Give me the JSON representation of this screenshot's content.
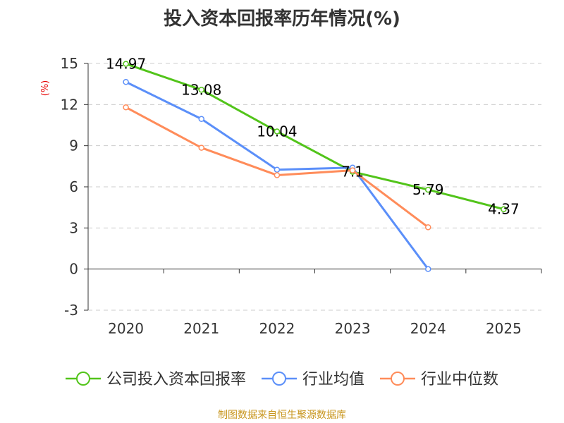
{
  "chart_data": {
    "type": "line",
    "title": "投入资本回报率历年情况(%)",
    "ylabel": "(%)",
    "xlabel": "",
    "categories": [
      "2020",
      "2021",
      "2022",
      "2023",
      "2024",
      "2025"
    ],
    "ylim": [
      -3,
      15
    ],
    "yticks": [
      -3,
      0,
      3,
      6,
      9,
      12,
      15
    ],
    "grid": true,
    "legend_position": "bottom",
    "series": [
      {
        "name": "公司投入资本回报率",
        "color": "#52c41a",
        "values": [
          14.97,
          13.08,
          10.04,
          7.1,
          5.79,
          4.37
        ],
        "labels": [
          "14.97",
          "13.08",
          "10.04",
          "7.1",
          "5.79",
          "4.37"
        ]
      },
      {
        "name": "行业均值",
        "color": "#5b8ff9",
        "values": [
          13.65,
          10.95,
          7.25,
          7.4,
          0.0,
          null
        ]
      },
      {
        "name": "行业中位数",
        "color": "#ff8c5a",
        "values": [
          11.8,
          8.85,
          6.85,
          7.2,
          3.05,
          null
        ]
      }
    ]
  },
  "source_note": "制图数据来自恒生聚源数据库",
  "colors": {
    "title": "#333333",
    "ylabel": "#e60000",
    "source_note": "#c8961e",
    "axis": "#333333",
    "grid": "#cccccc"
  }
}
